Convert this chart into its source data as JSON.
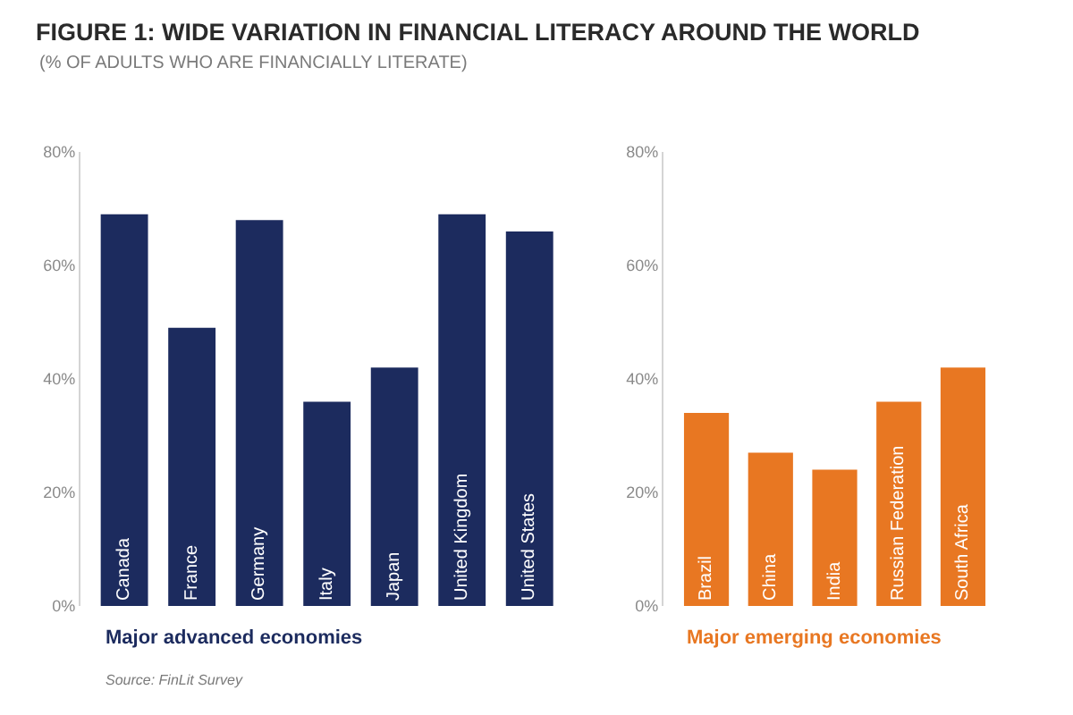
{
  "chart_data": [
    {
      "type": "bar",
      "title": "FIGURE 1: WIDE VARIATION IN FINANCIAL LITERACY AROUND THE WORLD",
      "subtitle": "(% OF ADULTS WHO ARE FINANCIALLY LITERATE)",
      "xlabel": "Major advanced economies",
      "categories": [
        "Canada",
        "France",
        "Germany",
        "Italy",
        "Japan",
        "United Kingdom",
        "United States"
      ],
      "series": [
        {
          "color": "#1c2b5e",
          "values": [
            69,
            49,
            68,
            36,
            42,
            69,
            66
          ]
        }
      ],
      "ylim": [
        0,
        80
      ],
      "yticks": [
        {
          "value": 0,
          "label": "0%"
        },
        {
          "value": 20,
          "label": "20%"
        },
        {
          "value": 40,
          "label": "40%"
        },
        {
          "value": 60,
          "label": "60%"
        },
        {
          "value": 80,
          "label": "80%"
        }
      ],
      "grid": false,
      "annotations": [
        "Source: FinLit Survey"
      ]
    },
    {
      "type": "bar",
      "xlabel": "Major emerging economies",
      "categories": [
        "Brazil",
        "China",
        "India",
        "Russian Federation",
        "South Africa"
      ],
      "series": [
        {
          "color": "#e87722",
          "values": [
            34,
            27,
            24,
            36,
            42
          ]
        }
      ],
      "ylim": [
        0,
        80
      ],
      "yticks": [
        {
          "value": 0,
          "label": "0%"
        },
        {
          "value": 20,
          "label": "20%"
        },
        {
          "value": 40,
          "label": "40%"
        },
        {
          "value": 60,
          "label": "60%"
        },
        {
          "value": 80,
          "label": "80%"
        }
      ],
      "grid": false
    }
  ]
}
